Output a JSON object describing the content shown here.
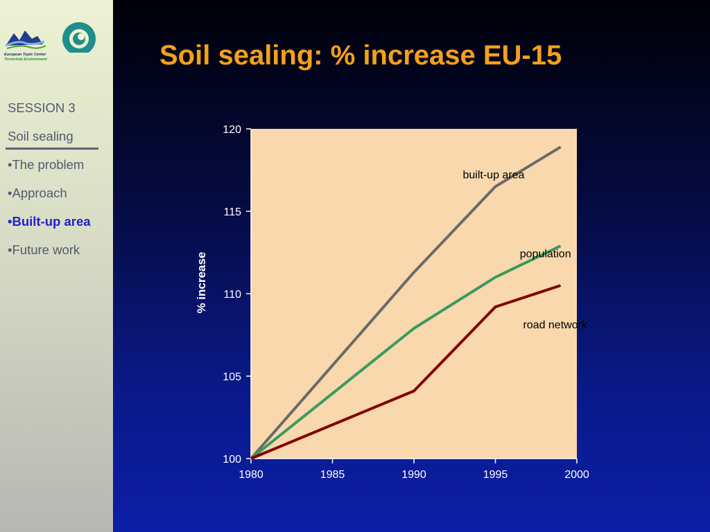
{
  "logo": {
    "line1": "European Topic Center",
    "line2": "Terrestrial Environment"
  },
  "title": "Soil sealing: % increase EU-15",
  "sidebar": {
    "items": [
      {
        "label": "SESSION 3",
        "active": false
      },
      {
        "label": "Soil sealing",
        "active": false
      },
      {
        "label": "•The problem",
        "active": false
      },
      {
        "label": "•Approach",
        "active": false
      },
      {
        "label": "•Built-up area",
        "active": true
      },
      {
        "label": "•Future work",
        "active": false
      }
    ]
  },
  "colors": {
    "title": "#f5a01a",
    "plot_background": "#f8d8ac",
    "active_nav": "#2220cc"
  },
  "chart_data": {
    "type": "line",
    "title": "",
    "xlabel": "",
    "ylabel": "% increase",
    "xlim": [
      1980,
      2000
    ],
    "ylim": [
      100,
      120
    ],
    "xticks": [
      1980,
      1985,
      1990,
      1995,
      2000
    ],
    "yticks": [
      100,
      105,
      110,
      115,
      120
    ],
    "grid": false,
    "series": [
      {
        "name": "built-up area",
        "color": "#6a6a6a",
        "x": [
          1980,
          1990,
          1995,
          1999
        ],
        "y": [
          100,
          111.3,
          116.5,
          118.9
        ]
      },
      {
        "name": "population",
        "color": "#3a9a5e",
        "x": [
          1980,
          1990,
          1995,
          1999
        ],
        "y": [
          100,
          107.9,
          111.0,
          112.9
        ]
      },
      {
        "name": "road network",
        "color": "#800000",
        "x": [
          1980,
          1990,
          1995,
          1999
        ],
        "y": [
          100,
          104.1,
          109.2,
          110.5
        ]
      }
    ]
  }
}
